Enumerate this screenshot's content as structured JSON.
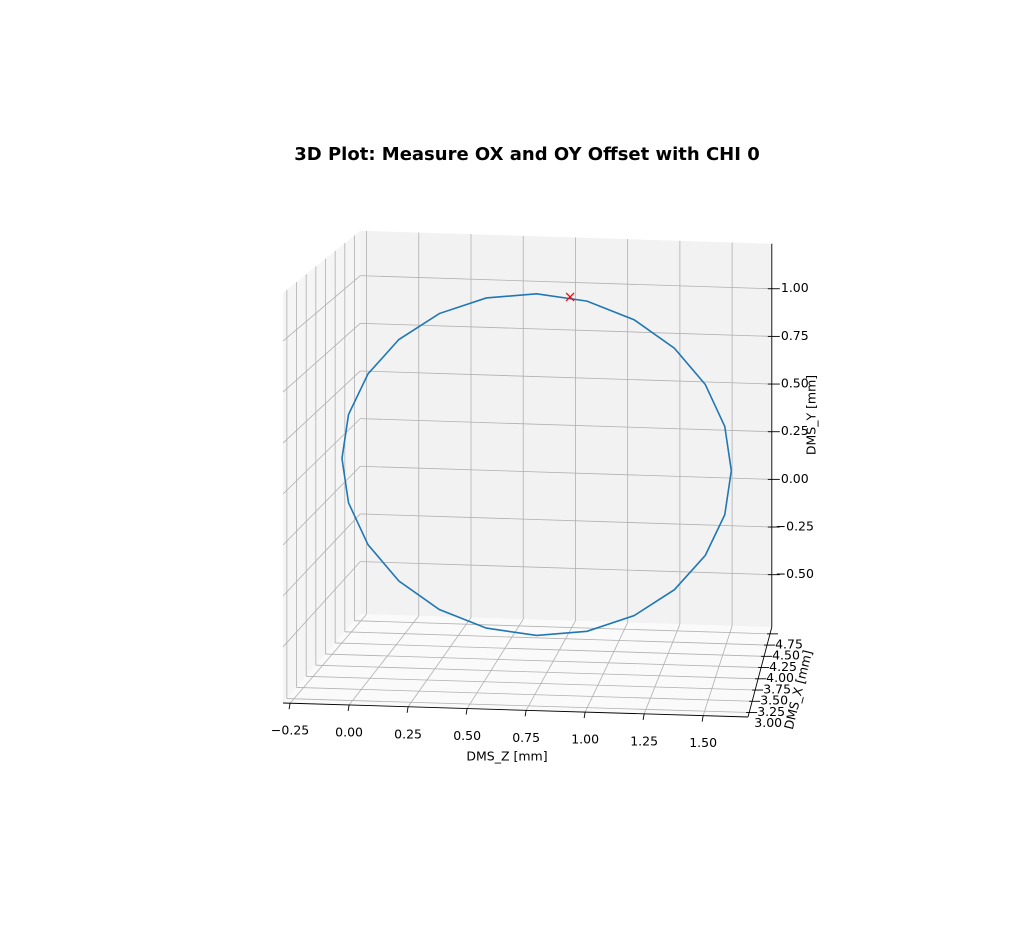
{
  "chart_data": {
    "type": "line3d",
    "title": "3D Plot: Measure OX and OY Offset with CHI 0",
    "xlabel": "DMS_Z [mm]",
    "ylabel": "DMS_Y [mm]",
    "zlabel": "DMS_X [mm]",
    "xlim": [
      -0.28,
      1.69
    ],
    "ylim": [
      -0.775,
      1.236
    ],
    "zlim": [
      2.9,
      4.9
    ],
    "xticks": [
      {
        "value": -0.25,
        "label": "−0.25"
      },
      {
        "value": 0,
        "label": "0.00"
      },
      {
        "value": 0.25,
        "label": "0.25"
      },
      {
        "value": 0.5,
        "label": "0.50"
      },
      {
        "value": 0.75,
        "label": "0.75"
      },
      {
        "value": 1,
        "label": "1.00"
      },
      {
        "value": 1.25,
        "label": "1.25"
      },
      {
        "value": 1.5,
        "label": "1.50"
      }
    ],
    "yticks": [
      {
        "value": -0.5,
        "label": "−0.50"
      },
      {
        "value": -0.25,
        "label": "−0.25"
      },
      {
        "value": 0,
        "label": "0.00"
      },
      {
        "value": 0.25,
        "label": "0.25"
      },
      {
        "value": 0.5,
        "label": "0.50"
      },
      {
        "value": 0.75,
        "label": "0.75"
      },
      {
        "value": 1,
        "label": "1.00"
      }
    ],
    "zticks": [
      {
        "value": 3,
        "label": "3.00"
      },
      {
        "value": 3.25,
        "label": "3.25"
      },
      {
        "value": 3.5,
        "label": "3.50"
      },
      {
        "value": 3.75,
        "label": "3.75"
      },
      {
        "value": 4,
        "label": "4.00"
      },
      {
        "value": 4.25,
        "label": "4.25"
      },
      {
        "value": 4.5,
        "label": "4.50"
      },
      {
        "value": 4.75,
        "label": "4.75"
      }
    ],
    "grid": true,
    "series": [
      {
        "color": "#1f77b4",
        "x": [
          1.51,
          1.479,
          1.387,
          1.241,
          1.05,
          0.828,
          0.59,
          0.352,
          0.13,
          -0.061,
          -0.207,
          -0.299,
          -0.33,
          -0.299,
          -0.207,
          -0.061,
          0.13,
          0.352,
          0.59,
          0.828,
          1.05,
          1.241,
          1.387,
          1.479,
          1.51
        ],
        "y": [
          0.08,
          0.31,
          0.525,
          0.709,
          0.851,
          0.94,
          0.97,
          0.94,
          0.851,
          0.709,
          0.525,
          0.31,
          0.08,
          -0.15,
          -0.365,
          -0.549,
          -0.691,
          -0.78,
          -0.81,
          -0.78,
          -0.691,
          -0.549,
          -0.365,
          -0.15,
          0.08
        ],
        "z": [
          4.7,
          4.7,
          4.7,
          4.7,
          4.7,
          4.7,
          4.7,
          4.7,
          4.7,
          4.7,
          4.7,
          4.7,
          4.7,
          4.7,
          4.7,
          4.7,
          4.7,
          4.7,
          4.7,
          4.7,
          4.7,
          4.7,
          4.7,
          4.7,
          4.7
        ]
      },
      {
        "color": "red",
        "marker": "x",
        "x": [
          0.748
        ],
        "y": [
          0.959
        ],
        "z": [
          4.7
        ]
      }
    ]
  }
}
